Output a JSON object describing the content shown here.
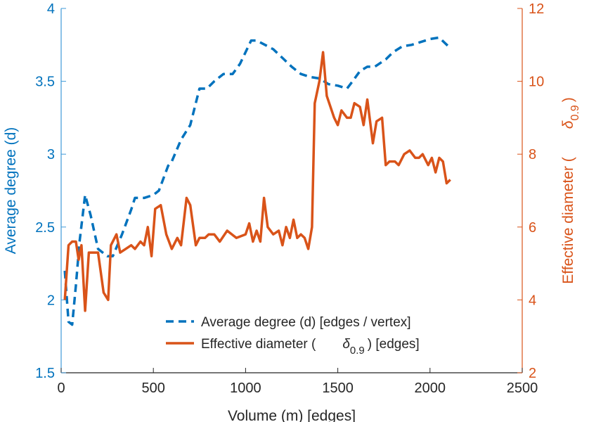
{
  "chart_data": {
    "type": "line",
    "xlabel": "Volume (m) [edges]",
    "ylabel_left": "Average degree (d)",
    "ylabel_right_prefix": "Effective diameter (",
    "ylabel_right_symbol": "δ",
    "ylabel_right_sub": "0.9",
    "ylabel_right_suffix": ")",
    "xlim": [
      0,
      2500
    ],
    "ylim_left": [
      1.5,
      4
    ],
    "ylim_right": [
      2,
      12
    ],
    "x_ticks": [
      0,
      500,
      1000,
      1500,
      2000,
      2500
    ],
    "y_left_ticks": [
      1.5,
      2,
      2.5,
      3,
      3.5,
      4
    ],
    "y_left_tick_labels": [
      "1.5",
      "2",
      "2.5",
      "3",
      "3.5",
      "4"
    ],
    "y_right_ticks": [
      2,
      4,
      6,
      8,
      10,
      12
    ],
    "grid": false,
    "legend_placement": "bottom-center",
    "colors": {
      "left": "#0072BD",
      "right": "#D95319",
      "axis_left": "#3f9ad8",
      "axis_right": "#D95319",
      "text": "#262626"
    },
    "series": [
      {
        "name": "Average degree (d) [edges / vertex]",
        "axis": "left",
        "style": "dashed",
        "x": [
          20,
          40,
          60,
          80,
          100,
          130,
          160,
          200,
          250,
          280,
          330,
          380,
          400,
          450,
          500,
          530,
          580,
          600,
          650,
          700,
          750,
          790,
          830,
          880,
          930,
          970,
          1030,
          1060,
          1090,
          1150,
          1200,
          1250,
          1300,
          1350,
          1400,
          1450,
          1500,
          1550,
          1580,
          1620,
          1660,
          1700,
          1760,
          1800,
          1850,
          1900,
          1950,
          2000,
          2050,
          2100
        ],
        "y": [
          2.2,
          1.85,
          1.83,
          2.1,
          2.4,
          2.72,
          2.58,
          2.35,
          2.3,
          2.3,
          2.45,
          2.62,
          2.7,
          2.7,
          2.72,
          2.75,
          2.92,
          2.95,
          3.1,
          3.2,
          3.45,
          3.45,
          3.5,
          3.55,
          3.55,
          3.62,
          3.78,
          3.78,
          3.76,
          3.72,
          3.66,
          3.6,
          3.55,
          3.53,
          3.52,
          3.48,
          3.47,
          3.45,
          3.5,
          3.57,
          3.6,
          3.6,
          3.65,
          3.7,
          3.74,
          3.75,
          3.77,
          3.79,
          3.8,
          3.74
        ]
      },
      {
        "name_prefix": "Effective diameter (",
        "name_symbol": "δ",
        "name_sub": "0.9",
        "name_suffix": ") [edges]",
        "axis": "right",
        "style": "solid",
        "x": [
          20,
          40,
          60,
          80,
          95,
          110,
          130,
          150,
          170,
          200,
          230,
          255,
          270,
          300,
          320,
          350,
          380,
          400,
          430,
          450,
          470,
          490,
          510,
          540,
          570,
          600,
          630,
          650,
          680,
          700,
          730,
          750,
          780,
          800,
          830,
          860,
          900,
          950,
          1000,
          1020,
          1040,
          1060,
          1080,
          1100,
          1120,
          1150,
          1180,
          1200,
          1220,
          1240,
          1260,
          1280,
          1300,
          1320,
          1340,
          1360,
          1375,
          1400,
          1420,
          1440,
          1480,
          1500,
          1520,
          1550,
          1570,
          1590,
          1620,
          1640,
          1660,
          1690,
          1710,
          1740,
          1760,
          1780,
          1810,
          1830,
          1860,
          1890,
          1920,
          1940,
          1960,
          1990,
          2010,
          2030,
          2050,
          2070,
          2090,
          2110
        ],
        "y": [
          4.0,
          5.5,
          5.6,
          5.6,
          5.1,
          5.5,
          3.7,
          5.3,
          5.3,
          5.3,
          4.2,
          4.0,
          5.5,
          5.8,
          5.3,
          5.4,
          5.5,
          5.4,
          5.6,
          5.5,
          6.0,
          5.2,
          6.5,
          6.6,
          5.8,
          5.4,
          5.7,
          5.5,
          6.8,
          6.6,
          5.5,
          5.7,
          5.7,
          5.8,
          5.8,
          5.6,
          5.9,
          5.7,
          5.8,
          6.1,
          5.6,
          5.9,
          5.6,
          6.8,
          6.0,
          5.8,
          5.9,
          5.5,
          6.0,
          5.7,
          6.2,
          5.7,
          5.8,
          5.7,
          5.4,
          6.0,
          9.4,
          10.0,
          10.8,
          9.6,
          9.0,
          8.8,
          9.2,
          9.0,
          9.0,
          9.4,
          9.3,
          8.8,
          9.5,
          8.3,
          8.9,
          9.0,
          7.7,
          7.8,
          7.8,
          7.7,
          8.0,
          8.1,
          7.9,
          7.9,
          8.0,
          7.7,
          7.9,
          7.5,
          7.9,
          7.8,
          7.2,
          7.3
        ]
      }
    ]
  }
}
